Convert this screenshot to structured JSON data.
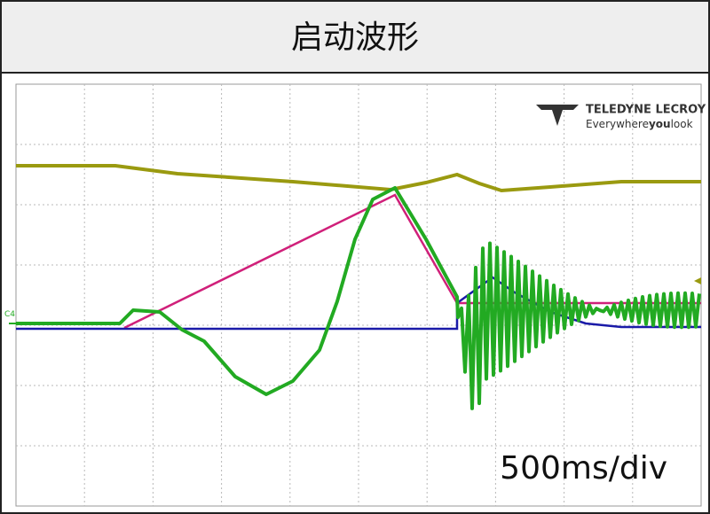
{
  "header": {
    "title": "启动波形"
  },
  "logo": {
    "brand": "TELEDYNE LECROY",
    "tagline": [
      "Everywhere",
      "you",
      "look"
    ]
  },
  "screen": {
    "channel_label": "C4",
    "timebase": "500ms/div"
  }
}
